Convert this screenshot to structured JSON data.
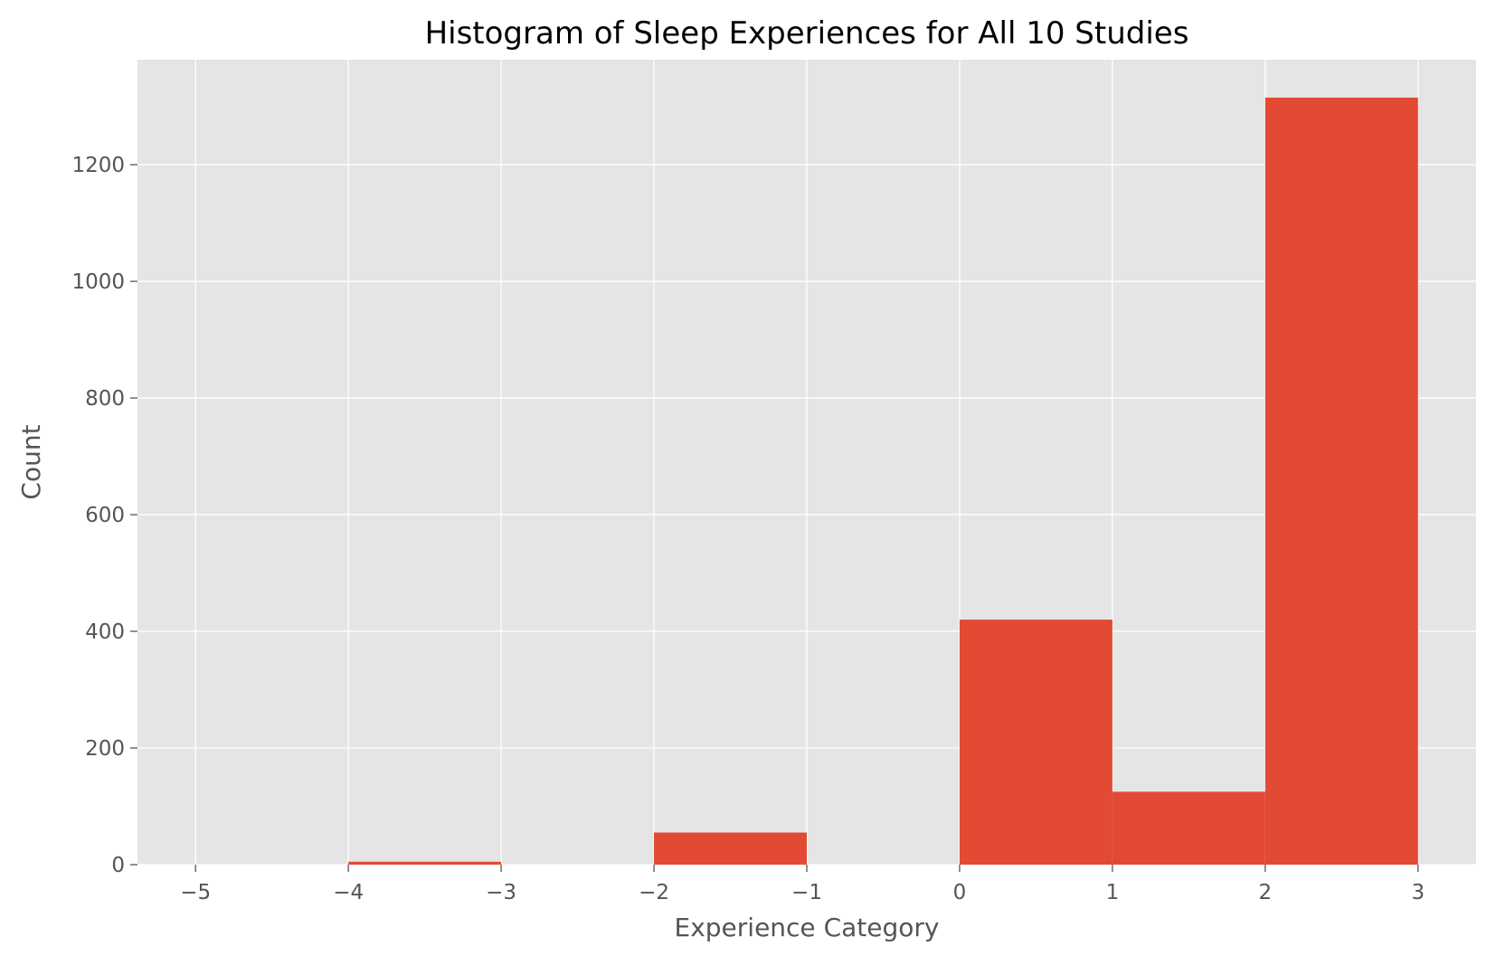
{
  "chart_data": {
    "type": "bar",
    "title": "Histogram of Sleep Experiences for All 10 Studies",
    "xlabel": "Experience Category",
    "ylabel": "Count",
    "xlim": [
      -5.38,
      3.38
    ],
    "ylim": [
      0,
      1380
    ],
    "x_ticks": [
      -5,
      -4,
      -3,
      -2,
      -1,
      0,
      1,
      2,
      3
    ],
    "x_tick_labels": [
      "−5",
      "−4",
      "−3",
      "−2",
      "−1",
      "0",
      "1",
      "2",
      "3"
    ],
    "y_ticks": [
      0,
      200,
      400,
      600,
      800,
      1000,
      1200
    ],
    "y_tick_labels": [
      "0",
      "200",
      "400",
      "600",
      "800",
      "1000",
      "1200"
    ],
    "bins": [
      {
        "x0": -5,
        "x1": -4,
        "count": 0
      },
      {
        "x0": -4,
        "x1": -3,
        "count": 5
      },
      {
        "x0": -3,
        "x1": -2,
        "count": 0
      },
      {
        "x0": -2,
        "x1": -1,
        "count": 55
      },
      {
        "x0": -1,
        "x1": 0,
        "count": 0
      },
      {
        "x0": 0,
        "x1": 1,
        "count": 420
      },
      {
        "x0": 1,
        "x1": 2,
        "count": 125
      },
      {
        "x0": 2,
        "x1": 3,
        "count": 1315
      }
    ],
    "grid": true,
    "legend": "none",
    "colors": {
      "bar": "#E24A33",
      "plot_background": "#E5E5E5",
      "grid": "#FFFFFF",
      "tick_label": "#555555",
      "title": "#000000"
    }
  }
}
